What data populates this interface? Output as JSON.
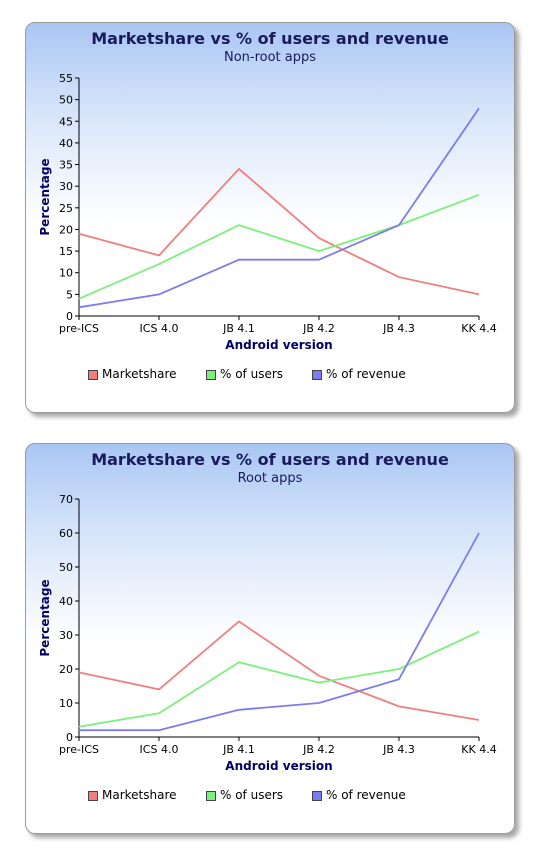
{
  "chart_data": [
    {
      "type": "line",
      "title": "Marketshare vs % of users and revenue",
      "subtitle": "Non-root apps",
      "xlabel": "Android version",
      "ylabel": "Percentage",
      "categories": [
        "pre-ICS",
        "ICS 4.0",
        "JB 4.1",
        "JB 4.2",
        "JB 4.3",
        "KK 4.4"
      ],
      "ylim": [
        0,
        55
      ],
      "yticks": [
        0,
        5,
        10,
        15,
        20,
        25,
        30,
        35,
        40,
        45,
        50,
        55
      ],
      "grid": false,
      "legend_position": "bottom",
      "series": [
        {
          "name": "Marketshare",
          "color": "#f08080",
          "values": [
            19,
            14,
            34,
            18,
            9,
            5
          ]
        },
        {
          "name": "% of users",
          "color": "#7cf07c",
          "values": [
            4,
            12,
            21,
            15,
            21,
            28
          ]
        },
        {
          "name": "% of revenue",
          "color": "#7c7cf0",
          "values": [
            2,
            5,
            13,
            13,
            21,
            48
          ]
        }
      ]
    },
    {
      "type": "line",
      "title": "Marketshare vs % of users and revenue",
      "subtitle": "Root apps",
      "xlabel": "Android version",
      "ylabel": "Percentage",
      "categories": [
        "pre-ICS",
        "ICS 4.0",
        "JB 4.1",
        "JB 4.2",
        "JB 4.3",
        "KK 4.4"
      ],
      "ylim": [
        0,
        70
      ],
      "yticks": [
        0,
        10,
        20,
        30,
        40,
        50,
        60,
        70
      ],
      "grid": false,
      "legend_position": "bottom",
      "series": [
        {
          "name": "Marketshare",
          "color": "#f08080",
          "values": [
            19,
            14,
            34,
            18,
            9,
            5
          ]
        },
        {
          "name": "% of users",
          "color": "#7cf07c",
          "values": [
            3,
            7,
            22,
            16,
            20,
            31
          ]
        },
        {
          "name": "% of revenue",
          "color": "#7c7cf0",
          "values": [
            2,
            2,
            8,
            10,
            17,
            60
          ]
        }
      ]
    }
  ]
}
